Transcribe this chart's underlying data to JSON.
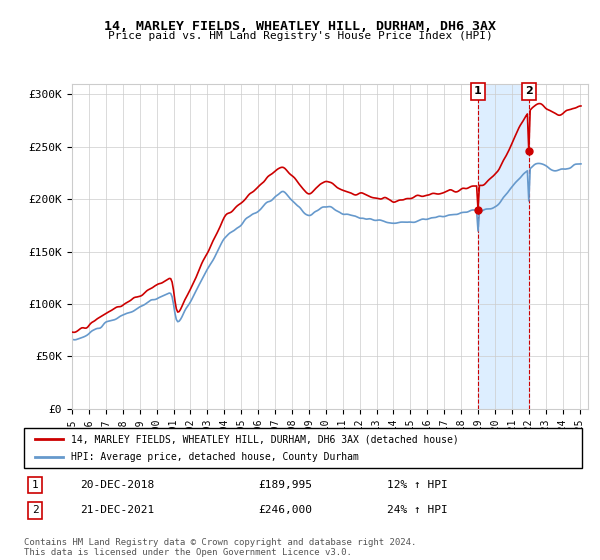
{
  "title": "14, MARLEY FIELDS, WHEATLEY HILL, DURHAM, DH6 3AX",
  "subtitle": "Price paid vs. HM Land Registry's House Price Index (HPI)",
  "ylabel": "",
  "xlabel": "",
  "ylim": [
    0,
    310000
  ],
  "yticks": [
    0,
    50000,
    100000,
    150000,
    200000,
    250000,
    300000
  ],
  "ytick_labels": [
    "£0",
    "£50K",
    "£100K",
    "£150K",
    "£200K",
    "£250K",
    "£300K"
  ],
  "year_start": 1995,
  "year_end": 2025,
  "legend_line1": "14, MARLEY FIELDS, WHEATLEY HILL, DURHAM, DH6 3AX (detached house)",
  "legend_line2": "HPI: Average price, detached house, County Durham",
  "marker1_date": "20-DEC-2018",
  "marker1_price": "£189,995",
  "marker1_pct": "12% ↑ HPI",
  "marker2_date": "21-DEC-2021",
  "marker2_price": "£246,000",
  "marker2_pct": "24% ↑ HPI",
  "footnote": "Contains HM Land Registry data © Crown copyright and database right 2024.\nThis data is licensed under the Open Government Licence v3.0.",
  "red_color": "#cc0000",
  "blue_color": "#6699cc",
  "shade_color": "#ddeeff",
  "marker_box_color": "#cc0000",
  "grid_color": "#cccccc",
  "bg_color": "#ffffff"
}
